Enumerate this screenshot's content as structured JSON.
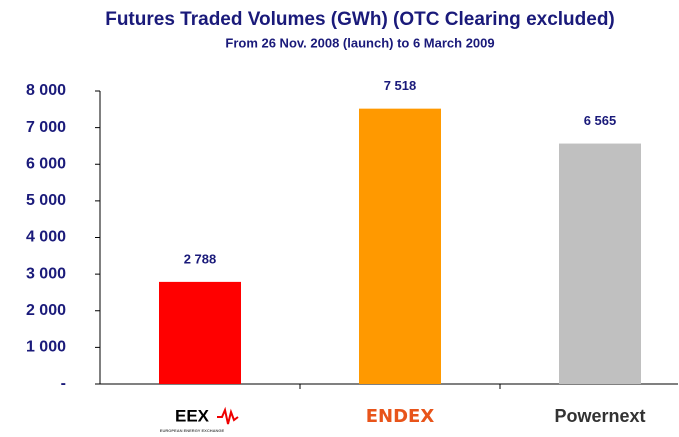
{
  "chart_data": {
    "type": "bar",
    "title": "Futures Traded Volumes (GWh) (OTC Clearing excluded)",
    "subtitle": "From 26 Nov. 2008 (launch) to 6 March 2009",
    "categories": [
      "EEX",
      "ENDEX",
      "Powernext"
    ],
    "category_note": "EUROPEAN ENERGY EXCHANGE",
    "values": [
      2788,
      7518,
      6565
    ],
    "value_labels": [
      "2 788",
      "7 518",
      "6 565"
    ],
    "colors": [
      "#ff0000",
      "#ff9900",
      "#c0c0c0"
    ],
    "ylim": [
      0,
      8000
    ],
    "yticks": [
      {
        "value": 0,
        "label": "-"
      },
      {
        "value": 1000,
        "label": "1 000"
      },
      {
        "value": 2000,
        "label": "2 000"
      },
      {
        "value": 3000,
        "label": "3 000"
      },
      {
        "value": 4000,
        "label": "4 000"
      },
      {
        "value": 5000,
        "label": "5 000"
      },
      {
        "value": 6000,
        "label": "6 000"
      },
      {
        "value": 7000,
        "label": "7 000"
      },
      {
        "value": 8000,
        "label": "8 000"
      }
    ],
    "grid": false
  }
}
